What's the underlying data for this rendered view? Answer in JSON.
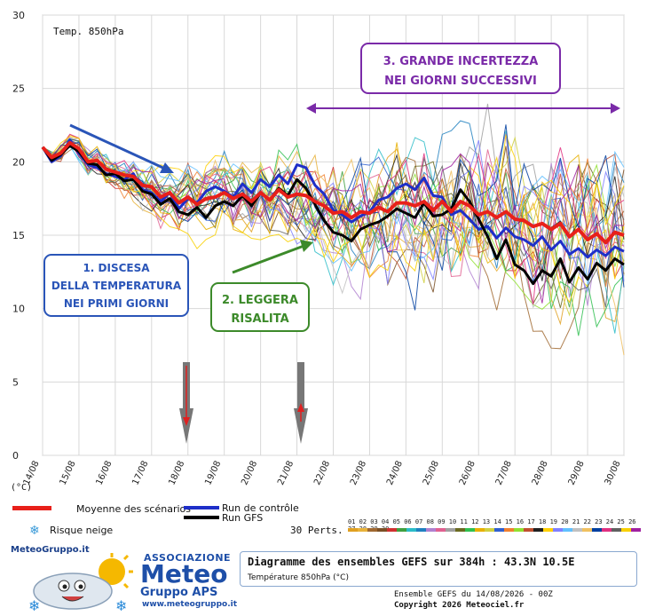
{
  "chart_data": {
    "type": "line",
    "title": "Temp. 850hPa",
    "unit_label": "(°C)",
    "ylim": [
      0,
      30
    ],
    "yticks": [
      "0",
      "5",
      "10",
      "15",
      "20",
      "25",
      "30"
    ],
    "x_dates": [
      "14/08",
      "15/08",
      "16/08",
      "17/08",
      "18/08",
      "19/08",
      "20/08",
      "21/08",
      "22/08",
      "23/08",
      "24/08",
      "25/08",
      "26/08",
      "27/08",
      "28/08",
      "29/08",
      "30/08"
    ],
    "x_range_days": [
      0,
      16
    ],
    "grid": true,
    "series": [
      {
        "name": "Moyenne des scénarios",
        "color": "#e8201a",
        "x": [
          0,
          0.25,
          0.5,
          0.75,
          1,
          1.25,
          1.5,
          1.75,
          2,
          2.25,
          2.5,
          2.75,
          3,
          3.25,
          3.5,
          3.75,
          4,
          4.25,
          4.5,
          4.75,
          5,
          5.25,
          5.5,
          5.75,
          6,
          6.25,
          6.5,
          6.75,
          7,
          7.25,
          7.5,
          7.75,
          8,
          8.25,
          8.5,
          8.75,
          9,
          9.25,
          9.5,
          9.75,
          10,
          10.25,
          10.5,
          10.75,
          11,
          11.25,
          11.5,
          11.75,
          12,
          12.25,
          12.5,
          12.75,
          13,
          13.25,
          13.5,
          13.75,
          14,
          14.25,
          14.5,
          14.75,
          15,
          15.25,
          15.5,
          15.75,
          16
        ],
        "y": [
          21.0,
          20.3,
          20.6,
          21.3,
          20.9,
          20.0,
          20.1,
          19.5,
          19.3,
          19.1,
          19.0,
          18.4,
          18.3,
          17.6,
          17.9,
          17.2,
          17.6,
          17.1,
          17.5,
          17.6,
          17.9,
          17.5,
          17.8,
          17.3,
          17.9,
          17.4,
          18.1,
          17.6,
          17.8,
          17.7,
          17.3,
          17.0,
          16.5,
          16.6,
          16.2,
          16.6,
          16.5,
          16.9,
          16.6,
          17.2,
          17.2,
          17.0,
          17.3,
          16.7,
          17.3,
          16.6,
          17.3,
          17.0,
          16.4,
          16.6,
          16.2,
          16.6,
          16.1,
          16.0,
          15.6,
          15.8,
          15.4,
          15.8,
          14.9,
          15.4,
          14.7,
          15.1,
          14.5,
          15.2,
          15.0
        ]
      },
      {
        "name": "Run de contrôle",
        "color": "#1e2fc8",
        "x": [
          0,
          0.25,
          0.5,
          0.75,
          1,
          1.25,
          1.5,
          1.75,
          2,
          2.25,
          2.5,
          2.75,
          3,
          3.25,
          3.5,
          3.75,
          4,
          4.25,
          4.5,
          4.75,
          5,
          5.25,
          5.5,
          5.75,
          6,
          6.25,
          6.5,
          6.75,
          7,
          7.25,
          7.5,
          7.75,
          8,
          8.25,
          8.5,
          8.75,
          9,
          9.25,
          9.5,
          9.75,
          10,
          10.25,
          10.5,
          10.75,
          11,
          11.25,
          11.5,
          11.75,
          12,
          12.25,
          12.5,
          12.75,
          13,
          13.25,
          13.5,
          13.75,
          14,
          14.25,
          14.5,
          14.75,
          15,
          15.25,
          15.5,
          15.75,
          16
        ],
        "y": [
          21.0,
          20.0,
          20.4,
          21.5,
          20.6,
          19.8,
          19.6,
          19.2,
          19.0,
          18.8,
          19.2,
          18.1,
          17.9,
          17.3,
          17.9,
          16.8,
          17.5,
          17.2,
          18.0,
          18.3,
          18.0,
          17.6,
          18.5,
          17.9,
          18.8,
          18.3,
          19.1,
          18.5,
          19.8,
          19.6,
          18.4,
          17.8,
          16.7,
          16.4,
          15.9,
          16.3,
          16.6,
          17.4,
          17.6,
          18.2,
          18.5,
          18.1,
          18.9,
          17.7,
          17.6,
          16.4,
          16.7,
          16.1,
          15.4,
          15.6,
          14.8,
          15.5,
          14.9,
          14.7,
          14.3,
          14.9,
          14.0,
          14.6,
          13.7,
          14.1,
          13.5,
          14.0,
          13.6,
          14.2,
          13.9
        ]
      },
      {
        "name": "Run GFS",
        "color": "#000000",
        "x": [
          0,
          0.25,
          0.5,
          0.75,
          1,
          1.25,
          1.5,
          1.75,
          2,
          2.25,
          2.5,
          2.75,
          3,
          3.25,
          3.5,
          3.75,
          4,
          4.25,
          4.5,
          4.75,
          5,
          5.25,
          5.5,
          5.75,
          6,
          6.25,
          6.5,
          6.75,
          7,
          7.25,
          7.5,
          7.75,
          8,
          8.25,
          8.5,
          8.75,
          9,
          9.25,
          9.5,
          9.75,
          10,
          10.25,
          10.5,
          10.75,
          11,
          11.25,
          11.5,
          11.75,
          12,
          12.25,
          12.5,
          12.75,
          13,
          13.25,
          13.5,
          13.75,
          14,
          14.25,
          14.5,
          14.75,
          15,
          15.25,
          15.5,
          15.75,
          16
        ],
        "y": [
          21.0,
          20.1,
          20.5,
          21.1,
          20.7,
          19.9,
          19.8,
          19.1,
          19.2,
          18.7,
          18.8,
          18.0,
          17.8,
          17.1,
          17.5,
          16.6,
          16.4,
          16.9,
          16.2,
          17.0,
          17.3,
          17.0,
          17.7,
          17.0,
          17.9,
          17.4,
          18.2,
          17.7,
          18.8,
          18.2,
          17.1,
          16.0,
          15.2,
          15.0,
          14.6,
          15.4,
          15.7,
          15.9,
          16.3,
          16.8,
          16.5,
          16.2,
          17.2,
          16.3,
          16.4,
          16.8,
          18.1,
          17.3,
          16.1,
          14.9,
          13.4,
          14.7,
          13.0,
          12.6,
          11.7,
          12.6,
          12.2,
          13.4,
          11.8,
          12.8,
          12.0,
          13.1,
          12.6,
          13.4,
          13.0
        ]
      }
    ],
    "perturbations_count": 30
  },
  "legend": {
    "mean_label": "Moyenne des scénarios",
    "control_label": "Run de contrôle",
    "gfs_label": "Run GFS",
    "snow_label": "Risque neige",
    "snow_icon": "snowflake-icon",
    "perts_label": "30 Perts.",
    "perts_numbers": "01 02 03 04 05 06 07 08 09 10 11 12 13 14 15 16 17 18 19 20 21 22 23 24 25 26 27 28 29 30",
    "perts_colors": [
      "#e0a020",
      "#e8b23a",
      "#a06830",
      "#7a4f25",
      "#d03030",
      "#40a040",
      "#2bbcc8",
      "#2080c0",
      "#b080d0",
      "#e06090",
      "#a0a0a0",
      "#6a6a20",
      "#30c050",
      "#e8b000",
      "#d0d040",
      "#3060d0",
      "#f08030",
      "#90e030",
      "#c05030",
      "#202020",
      "#ffd000",
      "#8080ff",
      "#60c0ff",
      "#c0c0c0",
      "#f0c060",
      "#0040a0",
      "#e03080",
      "#606060",
      "#f8d000",
      "#a020a0"
    ]
  },
  "annotations": {
    "box1_line1": "1. DISCESA",
    "box1_line2": "DELLA TEMPERATURA",
    "box1_line3": "NEI PRIMI GIORNI",
    "box2_line1": "2. LEGGERA",
    "box2_line2": "RISALITA",
    "box3_line1": "3. GRANDE INCERTEZZA",
    "box3_line2": "NEI GIORNI SUCCESSIVI",
    "box1_color": "#2a55b8",
    "box2_color": "#3c8a2a",
    "box3_color": "#7a2aa8"
  },
  "logo": {
    "site_top": "MeteoGruppo.it",
    "assoc": "ASSOCIAZIONE",
    "meteo": "Meteo",
    "gruppo": "Gruppo APS",
    "site_bottom": "www.meteogruppo.it"
  },
  "info": {
    "title": "Diagramme des ensembles GEFS sur 384h : 43.3N 10.5E",
    "subtitle": "Température 850hPa (°C)",
    "credit1": "Ensemble GEFS du 14/08/2026 - 00Z",
    "credit2": "Copyright 2026 Meteociel.fr"
  }
}
